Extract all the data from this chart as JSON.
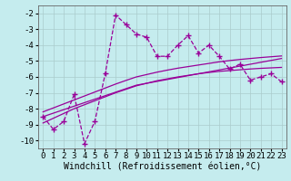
{
  "xlabel": "Windchill (Refroidissement éolien,°C)",
  "background_color": "#c5ecee",
  "grid_color": "#aacccc",
  "line_color": "#990099",
  "x_data": [
    0,
    1,
    2,
    3,
    4,
    5,
    6,
    7,
    8,
    9,
    10,
    11,
    12,
    13,
    14,
    15,
    16,
    17,
    18,
    19,
    20,
    21,
    22,
    23
  ],
  "y_main": [
    -8.5,
    -9.3,
    -8.8,
    -7.1,
    -10.2,
    -8.8,
    -5.8,
    -2.1,
    -2.7,
    -3.3,
    -3.5,
    -4.7,
    -4.7,
    -4.0,
    -3.4,
    -4.5,
    -4.0,
    -4.7,
    -5.5,
    -5.2,
    -6.2,
    -6.0,
    -5.8,
    -6.3
  ],
  "y_reg1": [
    -8.5,
    -8.28,
    -8.06,
    -7.84,
    -7.62,
    -7.4,
    -7.18,
    -6.96,
    -6.74,
    -6.52,
    -6.4,
    -6.28,
    -6.16,
    -6.04,
    -5.92,
    -5.8,
    -5.68,
    -5.56,
    -5.44,
    -5.32,
    -5.2,
    -5.08,
    -4.96,
    -4.84
  ],
  "y_reg2": [
    -8.9,
    -8.6,
    -8.3,
    -8.0,
    -7.75,
    -7.5,
    -7.25,
    -7.0,
    -6.78,
    -6.56,
    -6.4,
    -6.24,
    -6.12,
    -6.0,
    -5.9,
    -5.8,
    -5.72,
    -5.65,
    -5.6,
    -5.55,
    -5.5,
    -5.46,
    -5.43,
    -5.4
  ],
  "y_reg3": [
    -8.2,
    -7.95,
    -7.7,
    -7.45,
    -7.2,
    -6.95,
    -6.7,
    -6.45,
    -6.22,
    -6.0,
    -5.85,
    -5.7,
    -5.57,
    -5.45,
    -5.35,
    -5.25,
    -5.15,
    -5.05,
    -4.97,
    -4.9,
    -4.84,
    -4.78,
    -4.73,
    -4.68
  ],
  "ylim": [
    -10.5,
    -1.5
  ],
  "xlim": [
    -0.5,
    23.5
  ],
  "yticks": [
    -10,
    -9,
    -8,
    -7,
    -6,
    -5,
    -4,
    -3,
    -2
  ],
  "xticks": [
    0,
    1,
    2,
    3,
    4,
    5,
    6,
    7,
    8,
    9,
    10,
    11,
    12,
    13,
    14,
    15,
    16,
    17,
    18,
    19,
    20,
    21,
    22,
    23
  ],
  "tick_fontsize": 6.5,
  "xlabel_fontsize": 7
}
